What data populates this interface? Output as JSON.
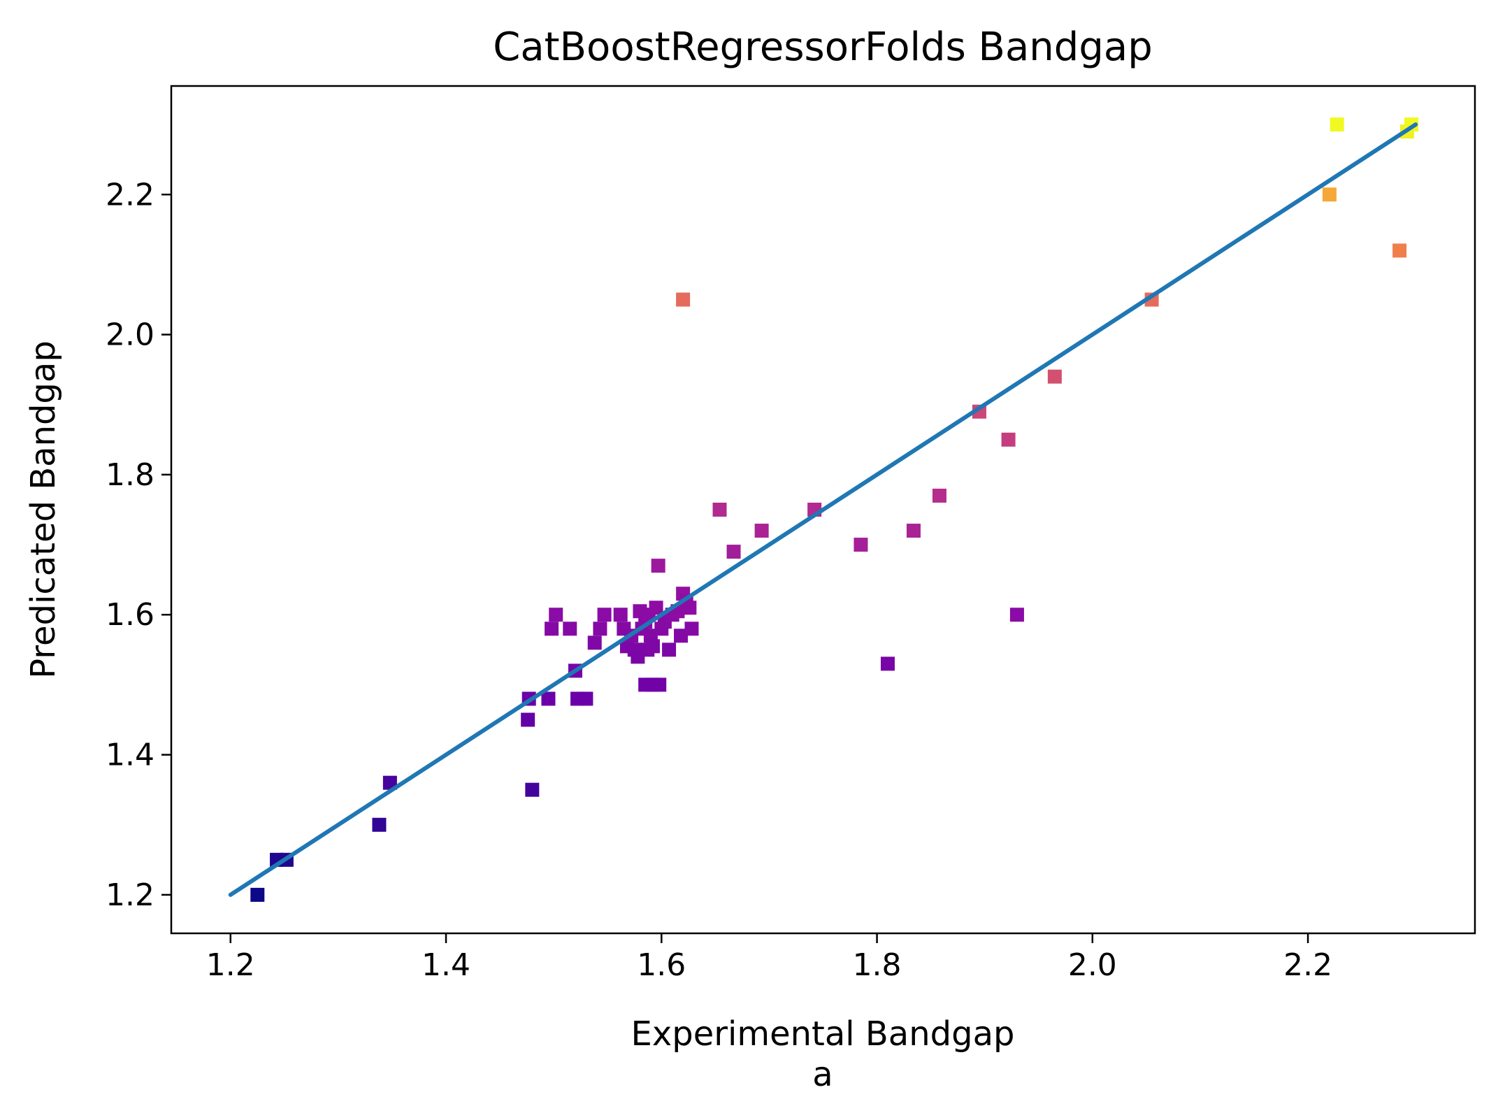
{
  "chart_data": {
    "type": "scatter",
    "title": "CatBoostRegressorFolds Bandgap",
    "xlabel": "Experimental Bandgap",
    "sublabel": "a",
    "ylabel": "Predicated Bandgap",
    "xlim": [
      1.145,
      2.355
    ],
    "ylim": [
      1.145,
      2.355
    ],
    "xticks": [
      "1.2",
      "1.4",
      "1.6",
      "1.8",
      "2.0",
      "2.2"
    ],
    "yticks": [
      "1.2",
      "1.4",
      "1.6",
      "1.8",
      "2.0",
      "2.2"
    ],
    "grid": false,
    "colormap": "plasma",
    "color_range": [
      1.2,
      2.3
    ],
    "line": {
      "x": [
        1.2,
        2.3
      ],
      "y": [
        1.2,
        2.3
      ],
      "color": "#1f77b4"
    },
    "points": [
      {
        "x": 1.225,
        "y": 1.2
      },
      {
        "x": 1.243,
        "y": 1.25
      },
      {
        "x": 1.252,
        "y": 1.25
      },
      {
        "x": 1.338,
        "y": 1.3
      },
      {
        "x": 1.348,
        "y": 1.36
      },
      {
        "x": 1.48,
        "y": 1.35
      },
      {
        "x": 1.476,
        "y": 1.45
      },
      {
        "x": 1.477,
        "y": 1.48
      },
      {
        "x": 1.495,
        "y": 1.48
      },
      {
        "x": 1.52,
        "y": 1.52
      },
      {
        "x": 1.522,
        "y": 1.48
      },
      {
        "x": 1.53,
        "y": 1.48
      },
      {
        "x": 1.498,
        "y": 1.58
      },
      {
        "x": 1.502,
        "y": 1.6
      },
      {
        "x": 1.515,
        "y": 1.58
      },
      {
        "x": 1.538,
        "y": 1.56
      },
      {
        "x": 1.543,
        "y": 1.58
      },
      {
        "x": 1.547,
        "y": 1.6
      },
      {
        "x": 1.562,
        "y": 1.6
      },
      {
        "x": 1.565,
        "y": 1.58
      },
      {
        "x": 1.568,
        "y": 1.555
      },
      {
        "x": 1.572,
        "y": 1.57
      },
      {
        "x": 1.575,
        "y": 1.55
      },
      {
        "x": 1.578,
        "y": 1.54
      },
      {
        "x": 1.58,
        "y": 1.605
      },
      {
        "x": 1.582,
        "y": 1.58
      },
      {
        "x": 1.585,
        "y": 1.59
      },
      {
        "x": 1.587,
        "y": 1.55
      },
      {
        "x": 1.588,
        "y": 1.6
      },
      {
        "x": 1.59,
        "y": 1.57
      },
      {
        "x": 1.592,
        "y": 1.555
      },
      {
        "x": 1.585,
        "y": 1.5
      },
      {
        "x": 1.592,
        "y": 1.5
      },
      {
        "x": 1.598,
        "y": 1.5
      },
      {
        "x": 1.595,
        "y": 1.61
      },
      {
        "x": 1.597,
        "y": 1.67
      },
      {
        "x": 1.6,
        "y": 1.58
      },
      {
        "x": 1.603,
        "y": 1.59
      },
      {
        "x": 1.607,
        "y": 1.55
      },
      {
        "x": 1.61,
        "y": 1.6
      },
      {
        "x": 1.615,
        "y": 1.605
      },
      {
        "x": 1.618,
        "y": 1.57
      },
      {
        "x": 1.62,
        "y": 1.63
      },
      {
        "x": 1.623,
        "y": 1.62
      },
      {
        "x": 1.626,
        "y": 1.61
      },
      {
        "x": 1.628,
        "y": 1.58
      },
      {
        "x": 1.62,
        "y": 2.05
      },
      {
        "x": 1.654,
        "y": 1.75
      },
      {
        "x": 1.667,
        "y": 1.69
      },
      {
        "x": 1.693,
        "y": 1.72
      },
      {
        "x": 1.742,
        "y": 1.75
      },
      {
        "x": 1.785,
        "y": 1.7
      },
      {
        "x": 1.81,
        "y": 1.53
      },
      {
        "x": 1.834,
        "y": 1.72
      },
      {
        "x": 1.858,
        "y": 1.77
      },
      {
        "x": 1.895,
        "y": 1.89
      },
      {
        "x": 1.922,
        "y": 1.85
      },
      {
        "x": 1.93,
        "y": 1.6
      },
      {
        "x": 1.965,
        "y": 1.94
      },
      {
        "x": 2.055,
        "y": 2.05
      },
      {
        "x": 2.22,
        "y": 2.2
      },
      {
        "x": 2.227,
        "y": 2.3
      },
      {
        "x": 2.285,
        "y": 2.12
      },
      {
        "x": 2.292,
        "y": 2.29
      },
      {
        "x": 2.296,
        "y": 2.3
      }
    ]
  }
}
